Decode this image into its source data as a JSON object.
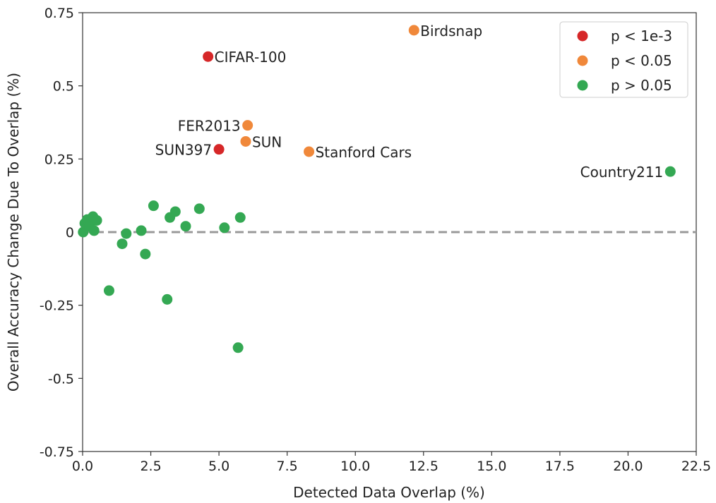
{
  "chart_data": {
    "type": "scatter",
    "title": "",
    "xlabel": "Detected Data Overlap (%)",
    "ylabel": "Overall Accuracy Change Due To Overlap (%)",
    "xlim": [
      0,
      22.5
    ],
    "ylim": [
      -0.75,
      0.75
    ],
    "x_ticks": [
      0.0,
      2.5,
      5.0,
      7.5,
      10.0,
      12.5,
      15.0,
      17.5,
      20.0,
      22.5
    ],
    "x_tick_labels": [
      "0.0",
      "2.5",
      "5.0",
      "7.5",
      "10.0",
      "12.5",
      "15.0",
      "17.5",
      "20.0",
      "22.5"
    ],
    "y_ticks": [
      0.75,
      0.5,
      0.25,
      0,
      -0.25,
      -0.5,
      -0.75
    ],
    "y_tick_labels": [
      "0.75",
      "0.5",
      "0.25",
      "0",
      "-0.25",
      "-0.5",
      "-0.75"
    ],
    "reference_line": {
      "y": 0,
      "style": "dashed",
      "color": "#999999"
    },
    "grid": false,
    "legend_position": "top-right",
    "series": [
      {
        "name": "p < 1e-3",
        "color": "#d62728",
        "points": [
          {
            "x": 4.6,
            "y": 0.6,
            "label": "CIFAR-100",
            "label_side": "right"
          },
          {
            "x": 5.0,
            "y": 0.283,
            "label": "SUN397",
            "label_side": "left"
          }
        ]
      },
      {
        "name": "p < 0.05",
        "color": "#f0883a",
        "points": [
          {
            "x": 12.15,
            "y": 0.69,
            "label": "Birdsnap",
            "label_side": "right"
          },
          {
            "x": 6.05,
            "y": 0.365,
            "label": "FER2013",
            "label_side": "left"
          },
          {
            "x": 5.98,
            "y": 0.31,
            "label": "SUN",
            "label_side": "right"
          },
          {
            "x": 8.3,
            "y": 0.275,
            "label": "Stanford Cars",
            "label_side": "right"
          }
        ]
      },
      {
        "name": "p > 0.05",
        "color": "#34a853",
        "points": [
          {
            "x": 21.55,
            "y": 0.207,
            "label": "Country211",
            "label_side": "left"
          },
          {
            "x": 0.02,
            "y": 0.0
          },
          {
            "x": 0.08,
            "y": 0.03
          },
          {
            "x": 0.17,
            "y": 0.043
          },
          {
            "x": 0.25,
            "y": 0.02
          },
          {
            "x": 0.38,
            "y": 0.053
          },
          {
            "x": 0.42,
            "y": 0.005
          },
          {
            "x": 0.52,
            "y": 0.04
          },
          {
            "x": 0.97,
            "y": -0.2
          },
          {
            "x": 1.45,
            "y": -0.04
          },
          {
            "x": 1.6,
            "y": -0.005
          },
          {
            "x": 2.15,
            "y": 0.005
          },
          {
            "x": 2.3,
            "y": -0.075
          },
          {
            "x": 2.6,
            "y": 0.09
          },
          {
            "x": 3.1,
            "y": -0.23
          },
          {
            "x": 3.2,
            "y": 0.05
          },
          {
            "x": 3.4,
            "y": 0.07
          },
          {
            "x": 3.78,
            "y": 0.02
          },
          {
            "x": 4.28,
            "y": 0.08
          },
          {
            "x": 5.2,
            "y": 0.015
          },
          {
            "x": 5.7,
            "y": -0.395
          },
          {
            "x": 5.78,
            "y": 0.05
          }
        ]
      }
    ]
  }
}
